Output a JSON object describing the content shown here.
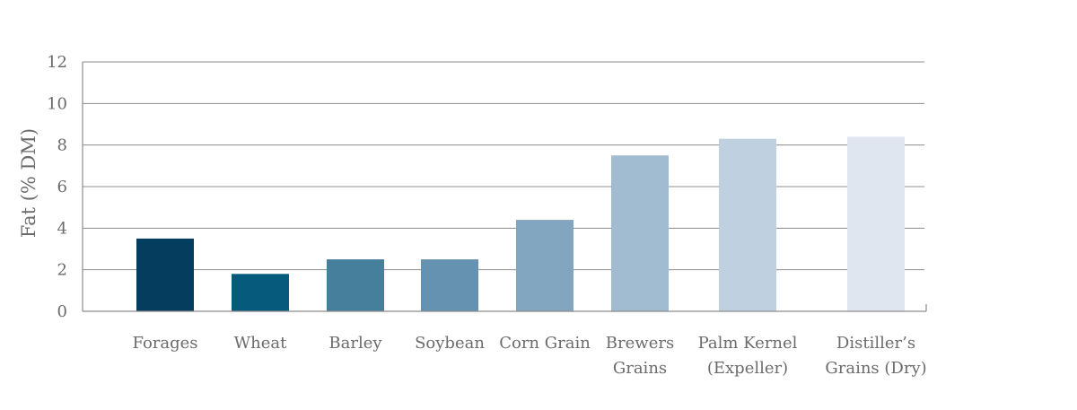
{
  "chart_data": {
    "type": "bar",
    "categories": [
      "Forages",
      "Wheat",
      "Barley",
      "Soybean",
      "Corn Grain",
      "Brewers Grains",
      "Palm Kernel (Expeller)",
      "Distiller's Grains (Dry)"
    ],
    "category_label_lines": [
      [
        "Forages"
      ],
      [
        "Wheat"
      ],
      [
        "Barley"
      ],
      [
        "Soybean"
      ],
      [
        "Corn Grain"
      ],
      [
        "Brewers",
        "Grains"
      ],
      [
        "Palm Kernel",
        "(Expeller)"
      ],
      [
        "Distiller’s",
        "Grains (Dry)"
      ]
    ],
    "values": [
      3.5,
      1.8,
      2.5,
      2.5,
      4.4,
      7.5,
      8.3,
      8.4
    ],
    "colors": [
      "#043d5d",
      "#065a7b",
      "#457f9c",
      "#6592b0",
      "#82a6bf",
      "#a1bbd1",
      "#bfd0e0",
      "#dfe6f0"
    ],
    "title": "",
    "xlabel": "",
    "ylabel": "Fat (% DM)",
    "ylim": [
      0,
      12
    ],
    "yticks": [
      0,
      2,
      4,
      6,
      8,
      10,
      12
    ],
    "grid": true
  }
}
